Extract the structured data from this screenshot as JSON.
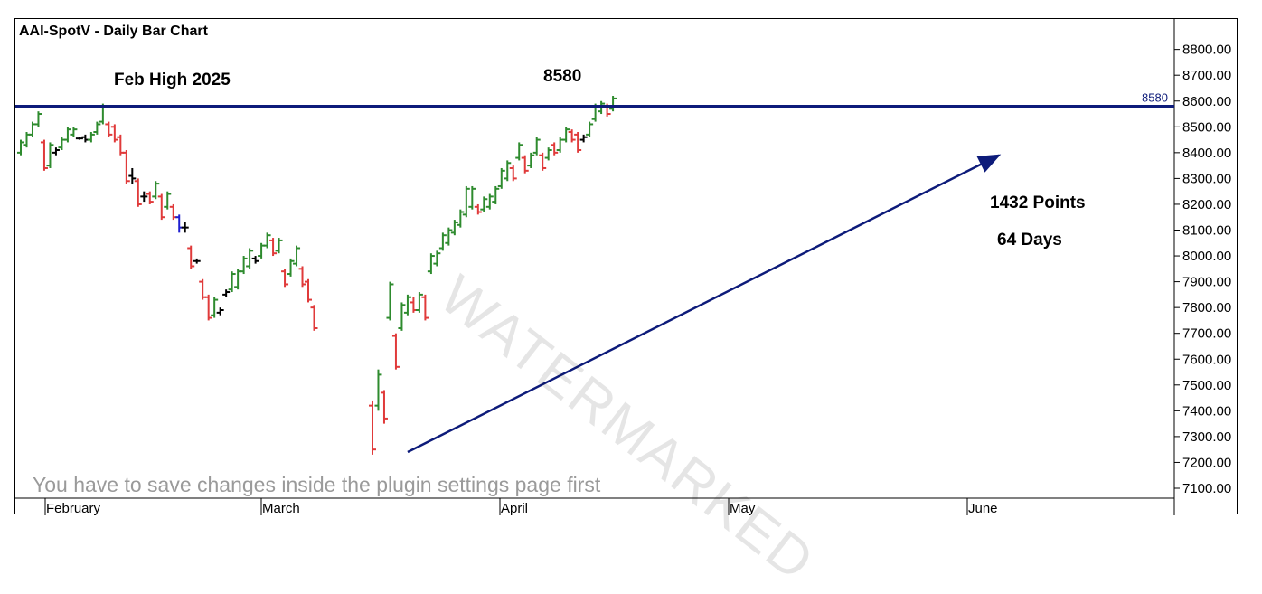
{
  "chart_data": {
    "type": "ohlc",
    "title": "AAI-SpotV - Daily Bar Chart",
    "ylim": [
      7050,
      8875
    ],
    "yticks": [
      "8800.00",
      "8700.00",
      "8600.00",
      "8500.00",
      "8400.00",
      "8300.00",
      "8200.00",
      "8100.00",
      "8000.00",
      "7900.00",
      "7800.00",
      "7700.00",
      "7600.00",
      "7500.00",
      "7400.00",
      "7300.00",
      "7200.00",
      "7100.00"
    ],
    "months": [
      "February",
      "March",
      "April",
      "May",
      "June"
    ],
    "horizontal_line": {
      "value": 8580,
      "label": "8580",
      "color": "#0d1b7a"
    },
    "annotations": {
      "feb_high": "Feb High 2025",
      "level": "8580",
      "points": "1432 Points",
      "days": "64 Days"
    },
    "trend_arrow": {
      "from": {
        "day": 57,
        "price": 7240
      },
      "to": {
        "day": 120,
        "price": 8390
      }
    },
    "colors": {
      "up": "#2e8b2e",
      "down": "#e03a3a",
      "neutral": "#000000",
      "blue": "#1f1fd0"
    },
    "bars": [
      {
        "h": 8450,
        "l": 8390,
        "o": 8400,
        "c": 8440
      },
      {
        "h": 8480,
        "l": 8420,
        "o": 8430,
        "c": 8470
      },
      {
        "h": 8520,
        "l": 8460,
        "o": 8470,
        "c": 8510
      },
      {
        "h": 8560,
        "l": 8500,
        "o": 8510,
        "c": 8550
      },
      {
        "h": 8450,
        "l": 8330,
        "o": 8440,
        "c": 8340
      },
      {
        "h": 8440,
        "l": 8340,
        "o": 8350,
        "c": 8430
      },
      {
        "h": 8420,
        "l": 8390,
        "o": 8400,
        "c": 8410
      },
      {
        "h": 8460,
        "l": 8410,
        "o": 8420,
        "c": 8450
      },
      {
        "h": 8500,
        "l": 8440,
        "o": 8450,
        "c": 8490
      },
      {
        "h": 8500,
        "l": 8460,
        "o": 8470,
        "c": 8490
      },
      {
        "h": 8460,
        "l": 8450,
        "o": 8455,
        "c": 8455
      },
      {
        "h": 8470,
        "l": 8440,
        "o": 8460,
        "c": 8450
      },
      {
        "h": 8480,
        "l": 8440,
        "o": 8450,
        "c": 8470
      },
      {
        "h": 8520,
        "l": 8470,
        "o": 8480,
        "c": 8510
      },
      {
        "h": 8590,
        "l": 8510,
        "o": 8520,
        "c": 8580
      },
      {
        "h": 8520,
        "l": 8460,
        "o": 8510,
        "c": 8470
      },
      {
        "h": 8510,
        "l": 8440,
        "o": 8500,
        "c": 8450
      },
      {
        "h": 8470,
        "l": 8390,
        "o": 8460,
        "c": 8400
      },
      {
        "h": 8410,
        "l": 8280,
        "o": 8400,
        "c": 8290
      },
      {
        "h": 8340,
        "l": 8280,
        "o": 8310,
        "c": 8300
      },
      {
        "h": 8300,
        "l": 8190,
        "o": 8290,
        "c": 8200
      },
      {
        "h": 8250,
        "l": 8210,
        "o": 8230,
        "c": 8230
      },
      {
        "h": 8250,
        "l": 8200,
        "o": 8240,
        "c": 8210
      },
      {
        "h": 8290,
        "l": 8220,
        "o": 8230,
        "c": 8280
      },
      {
        "h": 8240,
        "l": 8140,
        "o": 8230,
        "c": 8150
      },
      {
        "h": 8250,
        "l": 8180,
        "o": 8190,
        "c": 8240
      },
      {
        "h": 8200,
        "l": 8140,
        "o": 8190,
        "c": 8150
      },
      {
        "h": 8160,
        "l": 8090,
        "o": 8150,
        "c": 8110
      },
      {
        "h": 8130,
        "l": 8090,
        "o": 8110,
        "c": 8110
      },
      {
        "h": 8040,
        "l": 7950,
        "o": 8030,
        "c": 7960
      },
      {
        "h": 7990,
        "l": 7970,
        "o": 7980,
        "c": 7980
      },
      {
        "h": 7910,
        "l": 7830,
        "o": 7900,
        "c": 7840
      },
      {
        "h": 7850,
        "l": 7750,
        "o": 7840,
        "c": 7760
      },
      {
        "h": 7840,
        "l": 7760,
        "o": 7770,
        "c": 7830
      },
      {
        "h": 7800,
        "l": 7770,
        "o": 7780,
        "c": 7790
      },
      {
        "h": 7870,
        "l": 7840,
        "o": 7850,
        "c": 7860
      },
      {
        "h": 7940,
        "l": 7860,
        "o": 7870,
        "c": 7930
      },
      {
        "h": 7950,
        "l": 7870,
        "o": 7880,
        "c": 7940
      },
      {
        "h": 8000,
        "l": 7930,
        "o": 7940,
        "c": 7990
      },
      {
        "h": 8030,
        "l": 7950,
        "o": 7960,
        "c": 8020
      },
      {
        "h": 8000,
        "l": 7970,
        "o": 7990,
        "c": 7980
      },
      {
        "h": 8050,
        "l": 7990,
        "o": 8000,
        "c": 8040
      },
      {
        "h": 8090,
        "l": 8030,
        "o": 8040,
        "c": 8080
      },
      {
        "h": 8070,
        "l": 8000,
        "o": 8060,
        "c": 8010
      },
      {
        "h": 8070,
        "l": 8010,
        "o": 8020,
        "c": 8060
      },
      {
        "h": 7950,
        "l": 7880,
        "o": 7940,
        "c": 7890
      },
      {
        "h": 7990,
        "l": 7920,
        "o": 7930,
        "c": 7980
      },
      {
        "h": 8040,
        "l": 7960,
        "o": 7970,
        "c": 8030
      },
      {
        "h": 7960,
        "l": 7880,
        "o": 7950,
        "c": 7890
      },
      {
        "h": 7910,
        "l": 7820,
        "o": 7900,
        "c": 7830
      },
      {
        "h": 7810,
        "l": 7710,
        "o": 7800,
        "c": 7720
      },
      {
        "h": 7440,
        "l": 7230,
        "o": 7420,
        "c": 7250
      },
      {
        "h": 7560,
        "l": 7400,
        "o": 7420,
        "c": 7540
      },
      {
        "h": 7480,
        "l": 7350,
        "o": 7470,
        "c": 7370
      },
      {
        "h": 7900,
        "l": 7750,
        "o": 7760,
        "c": 7890
      },
      {
        "h": 7700,
        "l": 7560,
        "o": 7690,
        "c": 7570
      },
      {
        "h": 7820,
        "l": 7710,
        "o": 7720,
        "c": 7810
      },
      {
        "h": 7850,
        "l": 7770,
        "o": 7780,
        "c": 7840
      },
      {
        "h": 7840,
        "l": 7780,
        "o": 7820,
        "c": 7790
      },
      {
        "h": 7860,
        "l": 7780,
        "o": 7790,
        "c": 7850
      },
      {
        "h": 7850,
        "l": 7750,
        "o": 7840,
        "c": 7760
      },
      {
        "h": 8010,
        "l": 7930,
        "o": 7940,
        "c": 8000
      },
      {
        "h": 8020,
        "l": 7960,
        "o": 7970,
        "c": 8010
      },
      {
        "h": 8090,
        "l": 8020,
        "o": 8030,
        "c": 8080
      },
      {
        "h": 8110,
        "l": 8040,
        "o": 8050,
        "c": 8100
      },
      {
        "h": 8140,
        "l": 8080,
        "o": 8090,
        "c": 8130
      },
      {
        "h": 8180,
        "l": 8110,
        "o": 8120,
        "c": 8170
      },
      {
        "h": 8270,
        "l": 8150,
        "o": 8160,
        "c": 8260
      },
      {
        "h": 8270,
        "l": 8180,
        "o": 8190,
        "c": 8260
      },
      {
        "h": 8200,
        "l": 8160,
        "o": 8190,
        "c": 8170
      },
      {
        "h": 8230,
        "l": 8170,
        "o": 8180,
        "c": 8220
      },
      {
        "h": 8240,
        "l": 8180,
        "o": 8190,
        "c": 8230
      },
      {
        "h": 8270,
        "l": 8200,
        "o": 8210,
        "c": 8260
      },
      {
        "h": 8340,
        "l": 8260,
        "o": 8270,
        "c": 8330
      },
      {
        "h": 8370,
        "l": 8290,
        "o": 8300,
        "c": 8360
      },
      {
        "h": 8350,
        "l": 8290,
        "o": 8340,
        "c": 8300
      },
      {
        "h": 8440,
        "l": 8370,
        "o": 8380,
        "c": 8430
      },
      {
        "h": 8390,
        "l": 8320,
        "o": 8380,
        "c": 8330
      },
      {
        "h": 8400,
        "l": 8340,
        "o": 8350,
        "c": 8390
      },
      {
        "h": 8460,
        "l": 8390,
        "o": 8400,
        "c": 8450
      },
      {
        "h": 8400,
        "l": 8330,
        "o": 8390,
        "c": 8340
      },
      {
        "h": 8420,
        "l": 8370,
        "o": 8380,
        "c": 8410
      },
      {
        "h": 8440,
        "l": 8390,
        "o": 8430,
        "c": 8400
      },
      {
        "h": 8460,
        "l": 8400,
        "o": 8410,
        "c": 8450
      },
      {
        "h": 8500,
        "l": 8440,
        "o": 8450,
        "c": 8490
      },
      {
        "h": 8490,
        "l": 8440,
        "o": 8480,
        "c": 8450
      },
      {
        "h": 8480,
        "l": 8400,
        "o": 8470,
        "c": 8410
      },
      {
        "h": 8470,
        "l": 8440,
        "o": 8450,
        "c": 8460
      },
      {
        "h": 8520,
        "l": 8460,
        "o": 8470,
        "c": 8510
      },
      {
        "h": 8590,
        "l": 8520,
        "o": 8530,
        "c": 8580
      },
      {
        "h": 8600,
        "l": 8550,
        "o": 8560,
        "c": 8590
      },
      {
        "h": 8590,
        "l": 8540,
        "o": 8580,
        "c": 8550
      },
      {
        "h": 8620,
        "l": 8560,
        "o": 8570,
        "c": 8610
      }
    ]
  },
  "notice": "You have to save changes inside the plugin settings page first",
  "watermark": "WATERMARKED"
}
